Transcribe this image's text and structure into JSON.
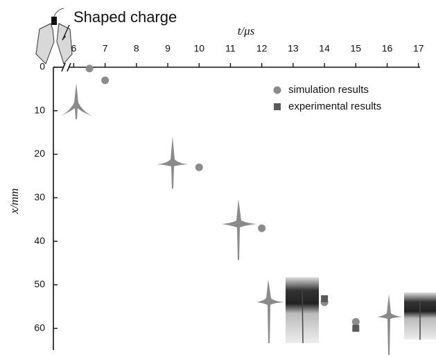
{
  "chart_data": {
    "type": "scatter",
    "annotation": "Shaped charge",
    "xlabel": "t/μs",
    "ylabel": "x/mm",
    "xlim": [
      5.35,
      17.05
    ],
    "ylim": [
      0,
      65
    ],
    "y_inverted": true,
    "x_axis_position": "top",
    "xticks": [
      6,
      7,
      8,
      9,
      10,
      11,
      12,
      13,
      14,
      15,
      16,
      17
    ],
    "yticks": [
      0,
      10,
      20,
      30,
      40,
      50,
      60
    ],
    "legend": "upper right",
    "series": [
      {
        "name": "simulation results",
        "color": "#8c8c8c",
        "marker": "circle",
        "x": [
          6.5,
          7,
          10,
          12,
          14,
          15
        ],
        "values": [
          0.3,
          3,
          23,
          37,
          54,
          58.5
        ]
      },
      {
        "name": "experimental results",
        "color": "#5a5a5a",
        "marker": "square",
        "x": [
          14,
          15
        ],
        "values": [
          53.2,
          60
        ]
      }
    ]
  }
}
